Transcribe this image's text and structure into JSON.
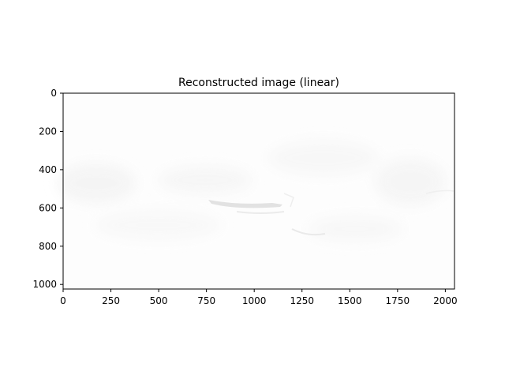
{
  "chart_data": {
    "type": "image",
    "title": "Reconstructed image (linear)",
    "xlabel": "",
    "ylabel": "",
    "xlim": [
      0,
      2048
    ],
    "ylim": [
      1024,
      0
    ],
    "x_ticks": [
      0,
      250,
      500,
      750,
      1000,
      1250,
      1500,
      1750,
      2000
    ],
    "y_ticks": [
      0,
      200,
      400,
      600,
      800,
      1000
    ],
    "grid": false,
    "colormap": "grayscale"
  }
}
